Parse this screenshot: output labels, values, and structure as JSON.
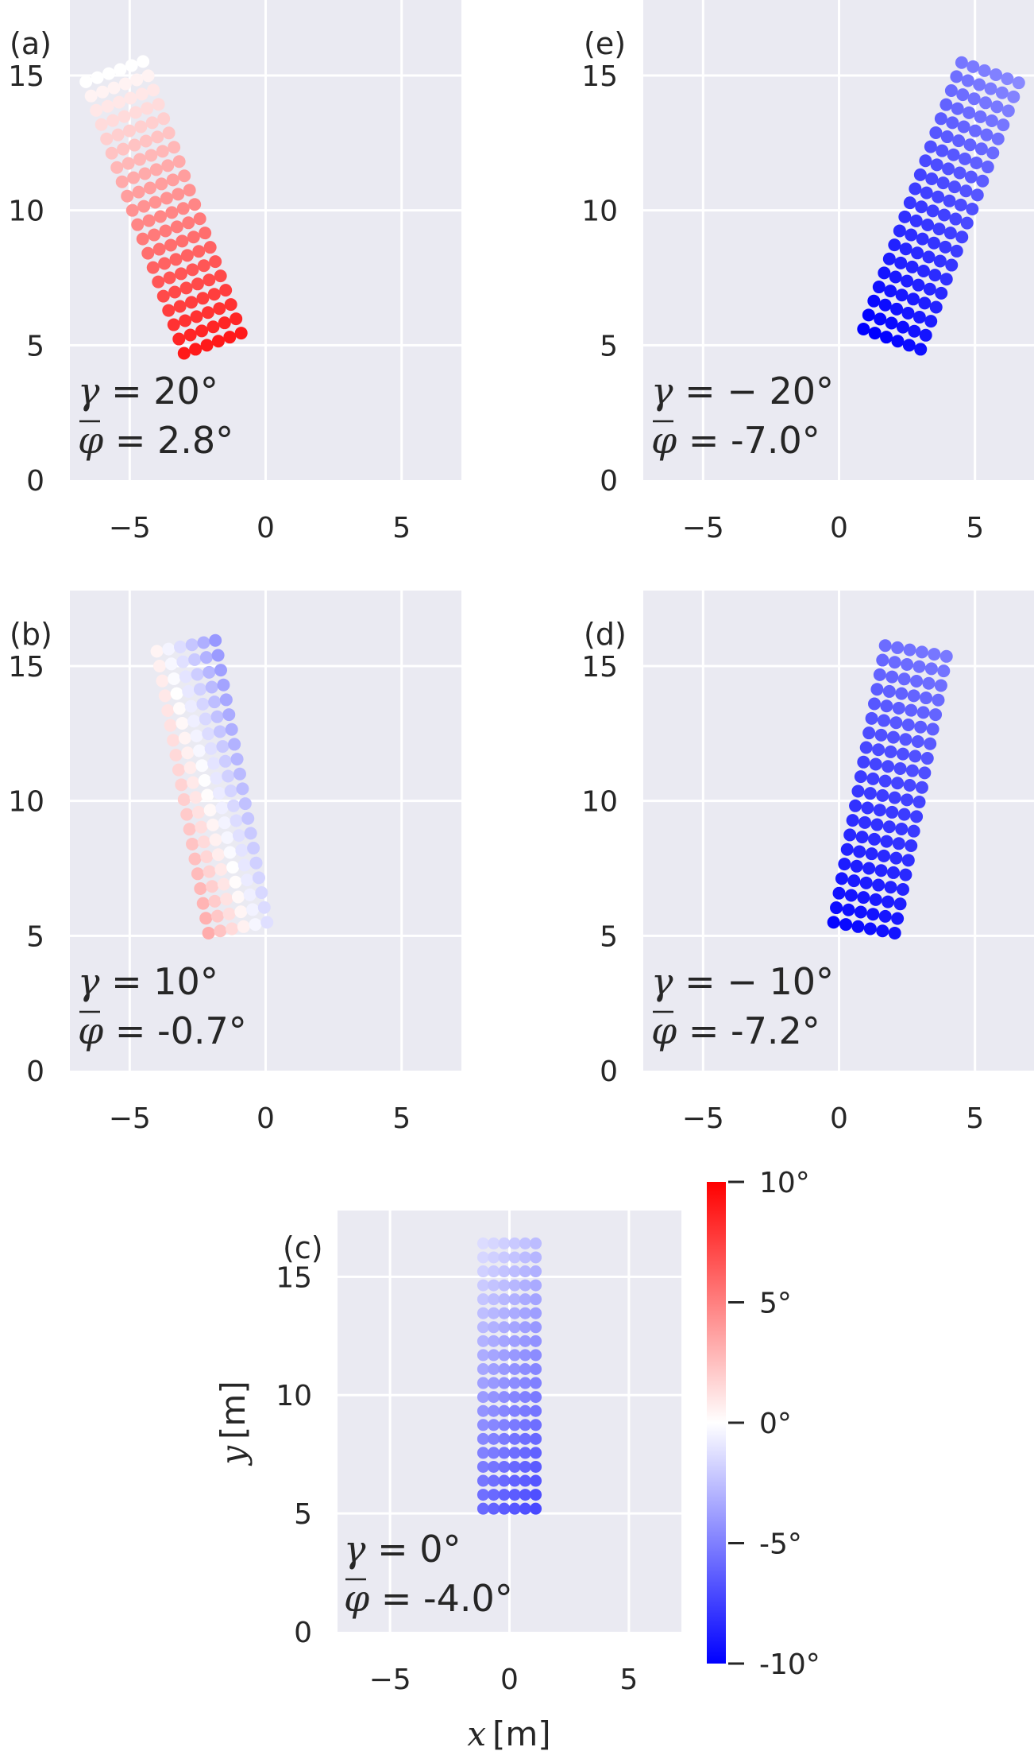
{
  "chart_data": {
    "type": "scatter",
    "colorbar": {
      "min": -10,
      "max": 10,
      "colormap": "bwr",
      "tick_labels": [
        "10°",
        "5°",
        "0°",
        "-5°",
        "-10°"
      ],
      "tick_values": [
        10,
        5,
        0,
        -5,
        -10
      ],
      "colors": {
        "low": "#0000ff",
        "mid": "#ffffff",
        "high": "#ff0000"
      }
    },
    "axes_style": {
      "background": "#eaeaf2",
      "grid": true,
      "grid_color": "#ffffff"
    },
    "xlabel_var": "x",
    "xlabel_unit": "[m]",
    "ylabel_var": "y",
    "ylabel_unit": "[m]",
    "panels": [
      {
        "label": "(a)",
        "gamma_label": "γ = 20°",
        "gamma_text": " = 20°",
        "phi_text": " = 2.8°",
        "gamma": 20,
        "mean_phi": 2.8,
        "xlim": [
          -7.2,
          7.2
        ],
        "ylim": [
          0,
          17.8
        ],
        "xticks": [
          -5,
          0,
          5
        ],
        "yticks": [
          0,
          5,
          10,
          15
        ],
        "xticklabels": [
          "−5",
          "0",
          "5"
        ],
        "yticklabels": [
          "0",
          "5",
          "10",
          "15"
        ],
        "grid_rows": 20,
        "grid_cols": 6,
        "bottom_left": [
          -3.0,
          4.7
        ],
        "row_vec": [
          -0.19,
          0.53
        ],
        "col_vec": [
          0.42,
          0.15
        ],
        "phi_bottom": 9.0,
        "phi_top": 0.0,
        "phi_col_gradient": 0.0
      },
      {
        "label": "(b)",
        "gamma_label": "γ = 10°",
        "gamma_text": " = 10°",
        "phi_text": " = -0.7°",
        "gamma": 10,
        "mean_phi": -0.7,
        "xlim": [
          -7.2,
          7.2
        ],
        "ylim": [
          0,
          17.8
        ],
        "xticks": [
          -5,
          0,
          5
        ],
        "yticks": [
          0,
          5,
          10,
          15
        ],
        "xticklabels": [
          "−5",
          "0",
          "5"
        ],
        "yticklabels": [
          "0",
          "5",
          "10",
          "15"
        ],
        "grid_rows": 20,
        "grid_cols": 6,
        "bottom_left": [
          -2.1,
          5.1
        ],
        "row_vec": [
          -0.1,
          0.55
        ],
        "col_vec": [
          0.43,
          0.08
        ],
        "phi_bottom": 1.0,
        "phi_top": -1.8,
        "phi_col_gradient": -0.9
      },
      {
        "label": "(c)",
        "gamma_label": "γ = 0°",
        "gamma_text": " = 0°",
        "phi_text": " = -4.0°",
        "gamma": 0,
        "mean_phi": -4.0,
        "xlim": [
          -7.2,
          7.2
        ],
        "ylim": [
          0,
          17.8
        ],
        "xticks": [
          -5,
          0,
          5
        ],
        "yticks": [
          0,
          5,
          10,
          15
        ],
        "xticklabels": [
          "−5",
          "0",
          "5"
        ],
        "yticklabels": [
          "0",
          "5",
          "10",
          "15"
        ],
        "grid_rows": 20,
        "grid_cols": 6,
        "bottom_left": [
          -1.1,
          5.2
        ],
        "row_vec": [
          0.0,
          0.59
        ],
        "col_vec": [
          0.44,
          0.0
        ],
        "phi_bottom": -6.5,
        "phi_top": -2.0,
        "phi_col_gradient": -0.25
      },
      {
        "label": "(d)",
        "gamma_label": "γ = −10°",
        "gamma_text": " = − 10°",
        "phi_text": " = -7.2°",
        "gamma": -10,
        "mean_phi": -7.2,
        "xlim": [
          -7.2,
          7.2
        ],
        "ylim": [
          0,
          17.8
        ],
        "xticks": [
          -5,
          0,
          5
        ],
        "yticks": [
          0,
          5,
          10,
          15
        ],
        "xticklabels": [
          "−5",
          "0",
          "5"
        ],
        "yticklabels": [
          "0",
          "5",
          "10",
          "15"
        ],
        "grid_rows": 20,
        "grid_cols": 6,
        "bottom_left": [
          -0.2,
          5.5
        ],
        "row_vec": [
          0.1,
          0.54
        ],
        "col_vec": [
          0.45,
          -0.08
        ],
        "phi_bottom": -9.5,
        "phi_top": -5.5,
        "phi_col_gradient": 0.1
      },
      {
        "label": "(e)",
        "gamma_label": "γ = −20°",
        "gamma_text": " = − 20°",
        "phi_text": " = -7.0°",
        "gamma": -20,
        "mean_phi": -7.0,
        "xlim": [
          -7.2,
          7.2
        ],
        "ylim": [
          0,
          17.8
        ],
        "xticks": [
          -5,
          0,
          5
        ],
        "yticks": [
          0,
          5,
          10,
          15
        ],
        "xticklabels": [
          "−5",
          "0",
          "5"
        ],
        "yticklabels": [
          "0",
          "5",
          "10",
          "15"
        ],
        "grid_rows": 20,
        "grid_cols": 6,
        "bottom_left": [
          0.9,
          5.6
        ],
        "row_vec": [
          0.19,
          0.52
        ],
        "col_vec": [
          0.42,
          -0.15
        ],
        "phi_bottom": -9.8,
        "phi_top": -5.0,
        "phi_col_gradient": 0.15
      }
    ]
  }
}
